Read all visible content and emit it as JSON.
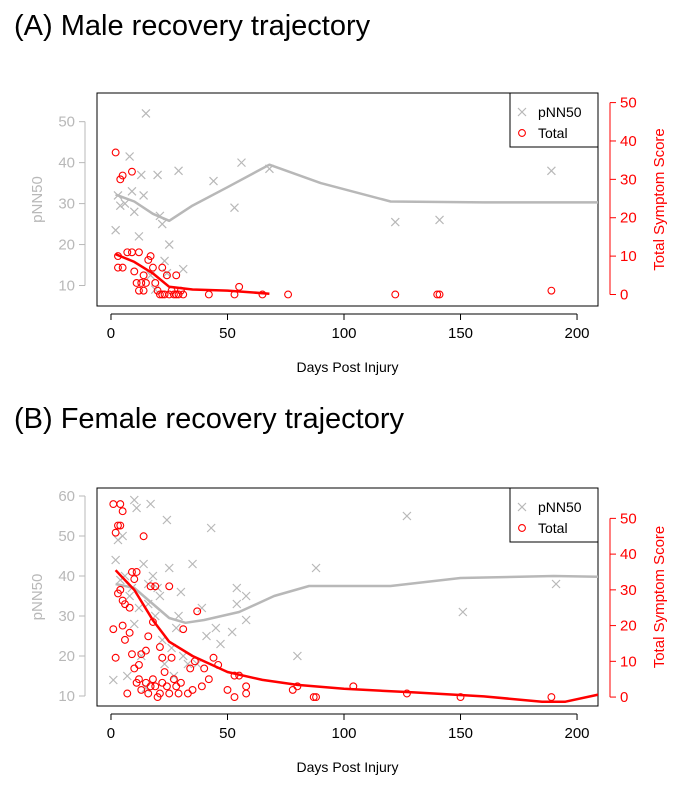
{
  "chart_data": [
    {
      "type": "scatter",
      "panel_title": "(A) Male recovery trajectory",
      "xlabel": "Days Post Injury",
      "ylabel_left": "pNN50",
      "ylabel_right": "Total Symptom Score",
      "xlim": [
        -6,
        209
      ],
      "xticks": [
        0,
        50,
        100,
        150,
        200
      ],
      "ylim_left": [
        5,
        57
      ],
      "yticks_left": [
        10,
        20,
        30,
        40,
        50
      ],
      "ylim_right": [
        -3,
        52.5
      ],
      "yticks_right": [
        0,
        10,
        20,
        30,
        40,
        50
      ],
      "legend": {
        "position": "top-right",
        "entries": [
          "pNN50",
          "Total"
        ]
      },
      "colors": {
        "pnn50": "#b8b8b8",
        "total": "#ff0000",
        "axis": "#000000",
        "left_axis": "#b8b8b8"
      },
      "series": [
        {
          "name": "pNN50",
          "kind": "points",
          "axis": "left",
          "marker": "x",
          "points": [
            [
              2,
              23.5
            ],
            [
              3,
              32
            ],
            [
              4,
              29.5
            ],
            [
              6,
              30
            ],
            [
              8,
              41.5
            ],
            [
              9,
              33
            ],
            [
              10,
              28
            ],
            [
              12,
              22
            ],
            [
              13,
              37
            ],
            [
              14,
              32
            ],
            [
              15,
              52
            ],
            [
              17,
              12.5
            ],
            [
              19,
              9
            ],
            [
              20,
              37
            ],
            [
              21,
              27
            ],
            [
              22,
              25
            ],
            [
              23,
              16
            ],
            [
              24,
              13
            ],
            [
              25,
              20
            ],
            [
              29,
              38
            ],
            [
              31,
              14
            ],
            [
              44,
              35.5
            ],
            [
              53,
              29
            ],
            [
              56,
              40
            ],
            [
              68,
              38.5
            ],
            [
              122,
              25.5
            ],
            [
              141,
              26
            ],
            [
              189,
              38
            ]
          ]
        },
        {
          "name": "pNN50 trend",
          "kind": "line",
          "axis": "left",
          "points": [
            [
              2,
              32.2
            ],
            [
              10,
              30.5
            ],
            [
              18,
              27.5
            ],
            [
              25,
              25.8
            ],
            [
              35,
              29.5
            ],
            [
              50,
              34
            ],
            [
              68,
              39.5
            ],
            [
              90,
              35
            ],
            [
              120,
              30.5
            ],
            [
              160,
              30.3
            ],
            [
              210,
              30.3
            ]
          ]
        },
        {
          "name": "Total",
          "kind": "points",
          "axis": "right",
          "marker": "o",
          "points": [
            [
              2,
              37
            ],
            [
              3,
              10
            ],
            [
              3,
              7
            ],
            [
              4,
              30
            ],
            [
              5,
              7
            ],
            [
              5,
              31
            ],
            [
              7,
              11
            ],
            [
              9,
              11
            ],
            [
              9,
              32
            ],
            [
              10,
              6
            ],
            [
              11,
              3
            ],
            [
              12,
              1
            ],
            [
              12,
              11
            ],
            [
              13,
              3
            ],
            [
              14,
              1
            ],
            [
              14,
              5
            ],
            [
              15,
              3
            ],
            [
              16,
              9
            ],
            [
              17,
              10
            ],
            [
              18,
              7
            ],
            [
              19,
              3
            ],
            [
              20,
              1
            ],
            [
              21,
              0
            ],
            [
              22,
              0
            ],
            [
              22,
              7
            ],
            [
              23,
              0
            ],
            [
              24,
              5
            ],
            [
              25,
              0
            ],
            [
              26,
              1
            ],
            [
              27,
              0
            ],
            [
              28,
              0
            ],
            [
              28,
              5
            ],
            [
              29,
              0
            ],
            [
              30,
              1
            ],
            [
              31,
              0
            ],
            [
              42,
              0
            ],
            [
              53,
              0
            ],
            [
              55,
              2
            ],
            [
              65,
              0
            ],
            [
              76,
              0
            ],
            [
              122,
              0
            ],
            [
              140,
              0
            ],
            [
              141,
              0
            ],
            [
              189,
              1
            ]
          ]
        },
        {
          "name": "Total trend",
          "kind": "line",
          "axis": "right",
          "points": [
            [
              2,
              10.5
            ],
            [
              10,
              8.5
            ],
            [
              18,
              5.5
            ],
            [
              25,
              2
            ],
            [
              35,
              1.3
            ],
            [
              50,
              1
            ],
            [
              68,
              0.2
            ]
          ]
        }
      ]
    },
    {
      "type": "scatter",
      "panel_title": "(B) Female recovery trajectory",
      "xlabel": "Days Post Injury",
      "ylabel_left": "pNN50",
      "ylabel_right": "Total Symptom Score",
      "xlim": [
        -6,
        209
      ],
      "xticks": [
        0,
        50,
        100,
        150,
        200
      ],
      "ylim_left": [
        7.5,
        62
      ],
      "yticks_left": [
        10,
        20,
        30,
        40,
        50,
        60
      ],
      "ylim_right": [
        -2.5,
        58.5
      ],
      "yticks_right": [
        0,
        10,
        20,
        30,
        40,
        50
      ],
      "legend": {
        "position": "top-right",
        "entries": [
          "pNN50",
          "Total"
        ]
      },
      "colors": {
        "pnn50": "#b8b8b8",
        "total": "#ff0000",
        "axis": "#000000",
        "left_axis": "#b8b8b8"
      },
      "series": [
        {
          "name": "pNN50",
          "kind": "points",
          "axis": "left",
          "marker": "x",
          "points": [
            [
              1,
              14
            ],
            [
              2,
              44
            ],
            [
              3,
              49
            ],
            [
              4,
              39
            ],
            [
              5,
              50
            ],
            [
              6,
              40
            ],
            [
              7,
              15
            ],
            [
              8,
              35
            ],
            [
              9,
              37
            ],
            [
              10,
              28
            ],
            [
              10,
              59
            ],
            [
              11,
              57
            ],
            [
              12,
              32
            ],
            [
              13,
              20
            ],
            [
              14,
              43
            ],
            [
              15,
              12
            ],
            [
              16,
              33
            ],
            [
              16,
              38
            ],
            [
              17,
              58
            ],
            [
              18,
              40
            ],
            [
              19,
              30
            ],
            [
              20,
              37
            ],
            [
              21,
              35
            ],
            [
              22,
              24
            ],
            [
              23,
              18
            ],
            [
              24,
              54
            ],
            [
              25,
              42
            ],
            [
              26,
              22
            ],
            [
              27,
              15
            ],
            [
              28,
              27
            ],
            [
              29,
              30
            ],
            [
              30,
              36
            ],
            [
              31,
              20
            ],
            [
              33,
              18
            ],
            [
              35,
              43
            ],
            [
              37,
              18
            ],
            [
              39,
              32
            ],
            [
              41,
              25
            ],
            [
              43,
              52
            ],
            [
              45,
              27
            ],
            [
              47,
              23
            ],
            [
              52,
              26
            ],
            [
              54,
              33
            ],
            [
              54,
              37
            ],
            [
              58,
              29
            ],
            [
              58,
              35
            ],
            [
              80,
              20
            ],
            [
              88,
              42
            ],
            [
              127,
              55
            ],
            [
              151,
              31
            ],
            [
              191,
              38
            ]
          ]
        },
        {
          "name": "pNN50 trend",
          "kind": "line",
          "axis": "left",
          "points": [
            [
              2,
              38
            ],
            [
              10,
              37
            ],
            [
              18,
              33
            ],
            [
              25,
              29.5
            ],
            [
              32,
              28.3
            ],
            [
              40,
              29
            ],
            [
              55,
              31
            ],
            [
              70,
              35
            ],
            [
              85,
              37.5
            ],
            [
              120,
              37.5
            ],
            [
              150,
              39.5
            ],
            [
              190,
              40
            ],
            [
              210,
              39.8
            ]
          ]
        },
        {
          "name": "Total",
          "kind": "points",
          "axis": "right",
          "marker": "o",
          "points": [
            [
              1,
              19
            ],
            [
              1,
              54
            ],
            [
              2,
              11
            ],
            [
              2,
              46
            ],
            [
              3,
              29
            ],
            [
              3,
              48
            ],
            [
              4,
              48
            ],
            [
              4,
              30
            ],
            [
              4,
              54
            ],
            [
              5,
              20
            ],
            [
              5,
              27
            ],
            [
              5,
              52
            ],
            [
              6,
              16
            ],
            [
              6,
              26
            ],
            [
              7,
              1
            ],
            [
              8,
              18
            ],
            [
              8,
              25
            ],
            [
              9,
              12
            ],
            [
              9,
              35
            ],
            [
              10,
              8
            ],
            [
              10,
              33
            ],
            [
              11,
              35
            ],
            [
              11,
              4
            ],
            [
              12,
              5
            ],
            [
              12,
              9
            ],
            [
              13,
              2
            ],
            [
              13,
              12
            ],
            [
              14,
              45
            ],
            [
              15,
              13
            ],
            [
              15,
              4
            ],
            [
              16,
              1
            ],
            [
              16,
              17
            ],
            [
              17,
              3
            ],
            [
              17,
              31
            ],
            [
              18,
              21
            ],
            [
              18,
              5
            ],
            [
              19,
              3
            ],
            [
              19,
              31
            ],
            [
              20,
              0
            ],
            [
              21,
              14
            ],
            [
              21,
              1
            ],
            [
              22,
              11
            ],
            [
              22,
              4
            ],
            [
              23,
              7
            ],
            [
              24,
              3
            ],
            [
              25,
              31
            ],
            [
              25,
              1
            ],
            [
              26,
              11
            ],
            [
              27,
              5
            ],
            [
              28,
              3
            ],
            [
              29,
              1
            ],
            [
              30,
              4
            ],
            [
              31,
              19
            ],
            [
              33,
              1
            ],
            [
              34,
              8
            ],
            [
              35,
              2
            ],
            [
              36,
              10
            ],
            [
              37,
              24
            ],
            [
              39,
              3
            ],
            [
              40,
              8
            ],
            [
              42,
              5
            ],
            [
              44,
              11
            ],
            [
              46,
              9
            ],
            [
              50,
              2
            ],
            [
              53,
              6
            ],
            [
              53,
              0
            ],
            [
              55,
              6
            ],
            [
              58,
              3
            ],
            [
              58,
              1
            ],
            [
              78,
              2
            ],
            [
              80,
              3
            ],
            [
              87,
              0
            ],
            [
              88,
              0
            ],
            [
              104,
              3
            ],
            [
              127,
              1
            ],
            [
              150,
              0
            ],
            [
              189,
              0
            ]
          ]
        },
        {
          "name": "Total trend",
          "kind": "line",
          "axis": "right",
          "points": [
            [
              2,
              35.5
            ],
            [
              10,
              30
            ],
            [
              18,
              21.5
            ],
            [
              25,
              15.5
            ],
            [
              35,
              11.5
            ],
            [
              50,
              7
            ],
            [
              65,
              4.8
            ],
            [
              80,
              3.4
            ],
            [
              100,
              2.3
            ],
            [
              130,
              1.3
            ],
            [
              160,
              0.2
            ],
            [
              185,
              -1.3
            ],
            [
              195,
              -1.3
            ],
            [
              210,
              0.8
            ]
          ]
        }
      ]
    }
  ]
}
